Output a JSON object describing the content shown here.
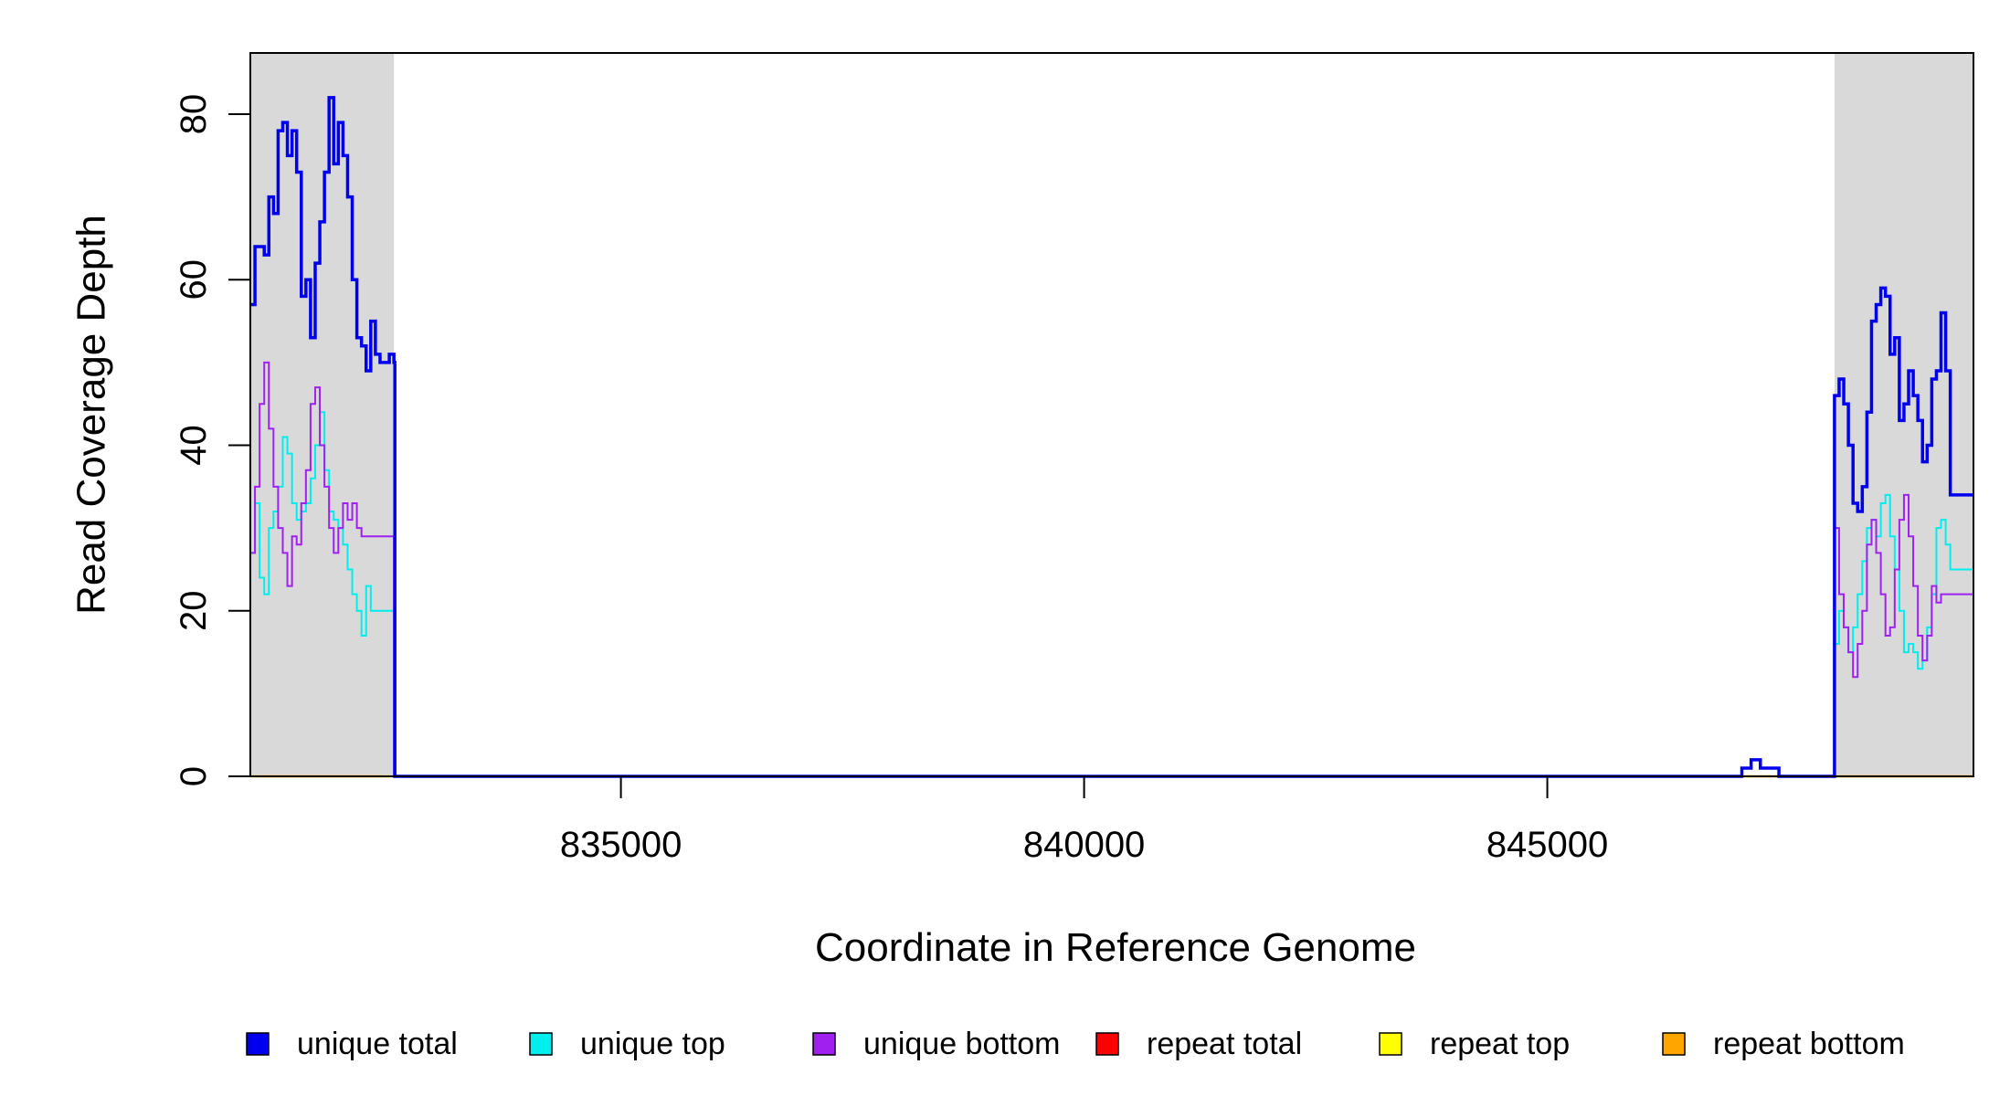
{
  "chart_data": {
    "type": "line",
    "title": "",
    "xlabel": "Coordinate in Reference Genome",
    "ylabel": "Read Coverage Depth",
    "xlim": [
      831000,
      849600
    ],
    "ylim": [
      0,
      87
    ],
    "x_ticks": [
      835000,
      840000,
      845000
    ],
    "x_tick_labels": [
      "835000",
      "840000",
      "845000"
    ],
    "y_ticks": [
      0,
      20,
      40,
      60,
      80
    ],
    "y_tick_labels": [
      "0",
      "20",
      "40",
      "60",
      "80"
    ],
    "grid": false,
    "legend_position": "bottom",
    "shaded_regions": [
      {
        "start": 831000,
        "end": 832550,
        "color": "#d9d9d9"
      },
      {
        "start": 848100,
        "end": 849600,
        "color": "#d9d9d9"
      }
    ],
    "series": [
      {
        "name": "unique total",
        "color": "#0000ee",
        "stroke": 3.5,
        "x": [
          831000,
          831050,
          831150,
          831200,
          831250,
          831300,
          831350,
          831400,
          831450,
          831500,
          831550,
          831600,
          831650,
          831700,
          831750,
          831800,
          831850,
          831900,
          831950,
          832000,
          832050,
          832100,
          832150,
          832200,
          832250,
          832300,
          832350,
          832400,
          832450,
          832500,
          832550,
          832560,
          833000,
          847000,
          847100,
          847200,
          847300,
          847500,
          848100,
          848150,
          848200,
          848250,
          848300,
          848350,
          848400,
          848450,
          848500,
          848550,
          848600,
          848650,
          848700,
          848750,
          848800,
          848850,
          848900,
          848950,
          849000,
          849050,
          849100,
          849150,
          849200,
          849250,
          849300,
          849350,
          849400,
          849450,
          849500,
          849550,
          849600
        ],
        "y": [
          57,
          64,
          63,
          70,
          68,
          78,
          79,
          75,
          78,
          73,
          58,
          60,
          53,
          62,
          67,
          73,
          82,
          74,
          79,
          75,
          70,
          60,
          53,
          52,
          49,
          55,
          51,
          50,
          50,
          51,
          50,
          0,
          0,
          0,
          1,
          2,
          1,
          0,
          46,
          48,
          45,
          40,
          33,
          32,
          35,
          44,
          55,
          57,
          59,
          58,
          51,
          53,
          43,
          45,
          49,
          46,
          43,
          38,
          40,
          48,
          49,
          56,
          49,
          34,
          34,
          34,
          34,
          34,
          34
        ]
      },
      {
        "name": "unique top",
        "color": "#00eeee",
        "stroke": 2,
        "x": [
          831000,
          831050,
          831100,
          831150,
          831200,
          831250,
          831300,
          831350,
          831400,
          831450,
          831500,
          831550,
          831600,
          831650,
          831700,
          831750,
          831800,
          831850,
          831900,
          831950,
          832000,
          832050,
          832100,
          832150,
          832200,
          832250,
          832300,
          832350,
          832400,
          832450,
          832500,
          832550,
          832560,
          848100,
          848150,
          848200,
          848250,
          848300,
          848350,
          848400,
          848450,
          848500,
          848550,
          848600,
          848650,
          848700,
          848750,
          848800,
          848850,
          848900,
          848950,
          849000,
          849050,
          849100,
          849150,
          849200,
          849250,
          849300,
          849350,
          849400,
          849450,
          849500,
          849550,
          849600
        ],
        "y": [
          27,
          33,
          24,
          22,
          30,
          32,
          35,
          41,
          39,
          33,
          31,
          32,
          33,
          36,
          40,
          44,
          37,
          32,
          31,
          30,
          28,
          25,
          22,
          20,
          17,
          23,
          20,
          20,
          20,
          20,
          20,
          0,
          0,
          16,
          20,
          18,
          15,
          18,
          22,
          26,
          30,
          31,
          29,
          33,
          34,
          29,
          25,
          20,
          15,
          16,
          15,
          13,
          14,
          18,
          22,
          30,
          31,
          28,
          25,
          25,
          25,
          25,
          25,
          25
        ]
      },
      {
        "name": "unique bottom",
        "color": "#a020f0",
        "stroke": 2,
        "x": [
          831000,
          831050,
          831100,
          831150,
          831200,
          831250,
          831300,
          831350,
          831400,
          831450,
          831500,
          831550,
          831600,
          831650,
          831700,
          831750,
          831800,
          831850,
          831900,
          831950,
          832000,
          832050,
          832100,
          832150,
          832200,
          832250,
          832300,
          832350,
          832400,
          832450,
          832500,
          832550,
          832560,
          848100,
          848150,
          848200,
          848250,
          848300,
          848350,
          848400,
          848450,
          848500,
          848550,
          848600,
          848650,
          848700,
          848750,
          848800,
          848850,
          848900,
          848950,
          849000,
          849050,
          849100,
          849150,
          849200,
          849250,
          849300,
          849350,
          849400,
          849450,
          849500,
          849550,
          849600
        ],
        "y": [
          27,
          35,
          45,
          50,
          42,
          35,
          30,
          27,
          23,
          29,
          28,
          33,
          37,
          45,
          47,
          40,
          35,
          30,
          27,
          30,
          33,
          31,
          33,
          30,
          29,
          29,
          29,
          29,
          29,
          29,
          29,
          0,
          0,
          30,
          22,
          18,
          15,
          12,
          16,
          20,
          28,
          31,
          27,
          22,
          17,
          18,
          25,
          31,
          34,
          29,
          23,
          17,
          14,
          17,
          23,
          21,
          22,
          22,
          22,
          22,
          22,
          22,
          22,
          22
        ]
      },
      {
        "name": "repeat total",
        "color": "#ff0000",
        "stroke": 2,
        "x": [
          831000,
          849600
        ],
        "y": [
          0,
          0
        ]
      },
      {
        "name": "repeat top",
        "color": "#ffff00",
        "stroke": 2,
        "x": [
          831000,
          849600
        ],
        "y": [
          0,
          0
        ]
      },
      {
        "name": "repeat bottom",
        "color": "#ffa500",
        "stroke": 2.5,
        "x": [
          831000,
          849600
        ],
        "y": [
          0,
          0
        ]
      }
    ]
  }
}
